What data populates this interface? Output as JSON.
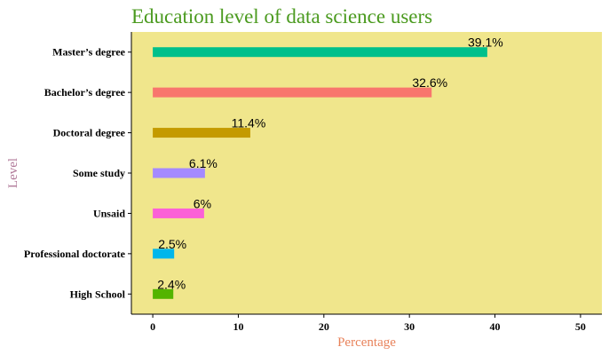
{
  "chart_data": {
    "type": "bar",
    "orientation": "horizontal",
    "title": "Education level of data science users",
    "xlabel": "Percentage",
    "ylabel": "Level",
    "xlim": [
      -2.5,
      52.5
    ],
    "xticks": [
      0,
      10,
      20,
      30,
      40,
      50
    ],
    "grid": false,
    "legend": "none",
    "categories": [
      "Master’s degree",
      "Bachelor’s degree",
      "Doctoral degree",
      "Some study",
      "Unsaid",
      "Professional doctorate",
      "High School"
    ],
    "values": [
      39.1,
      32.6,
      11.4,
      6.1,
      6,
      2.5,
      2.4
    ],
    "data_labels": [
      "39.1%",
      "32.6%",
      "11.4%",
      "6.1%",
      "6%",
      "2.5%",
      "2.4%"
    ],
    "colors": [
      "#00c08b",
      "#f8766d",
      "#c49a00",
      "#a58aff",
      "#fb61d7",
      "#00b6eb",
      "#53b400"
    ],
    "panel_color": "#f0e68c",
    "title_color": "#4a9a1e",
    "xlabel_color": "#e8825a",
    "ylabel_color": "#b07898"
  }
}
